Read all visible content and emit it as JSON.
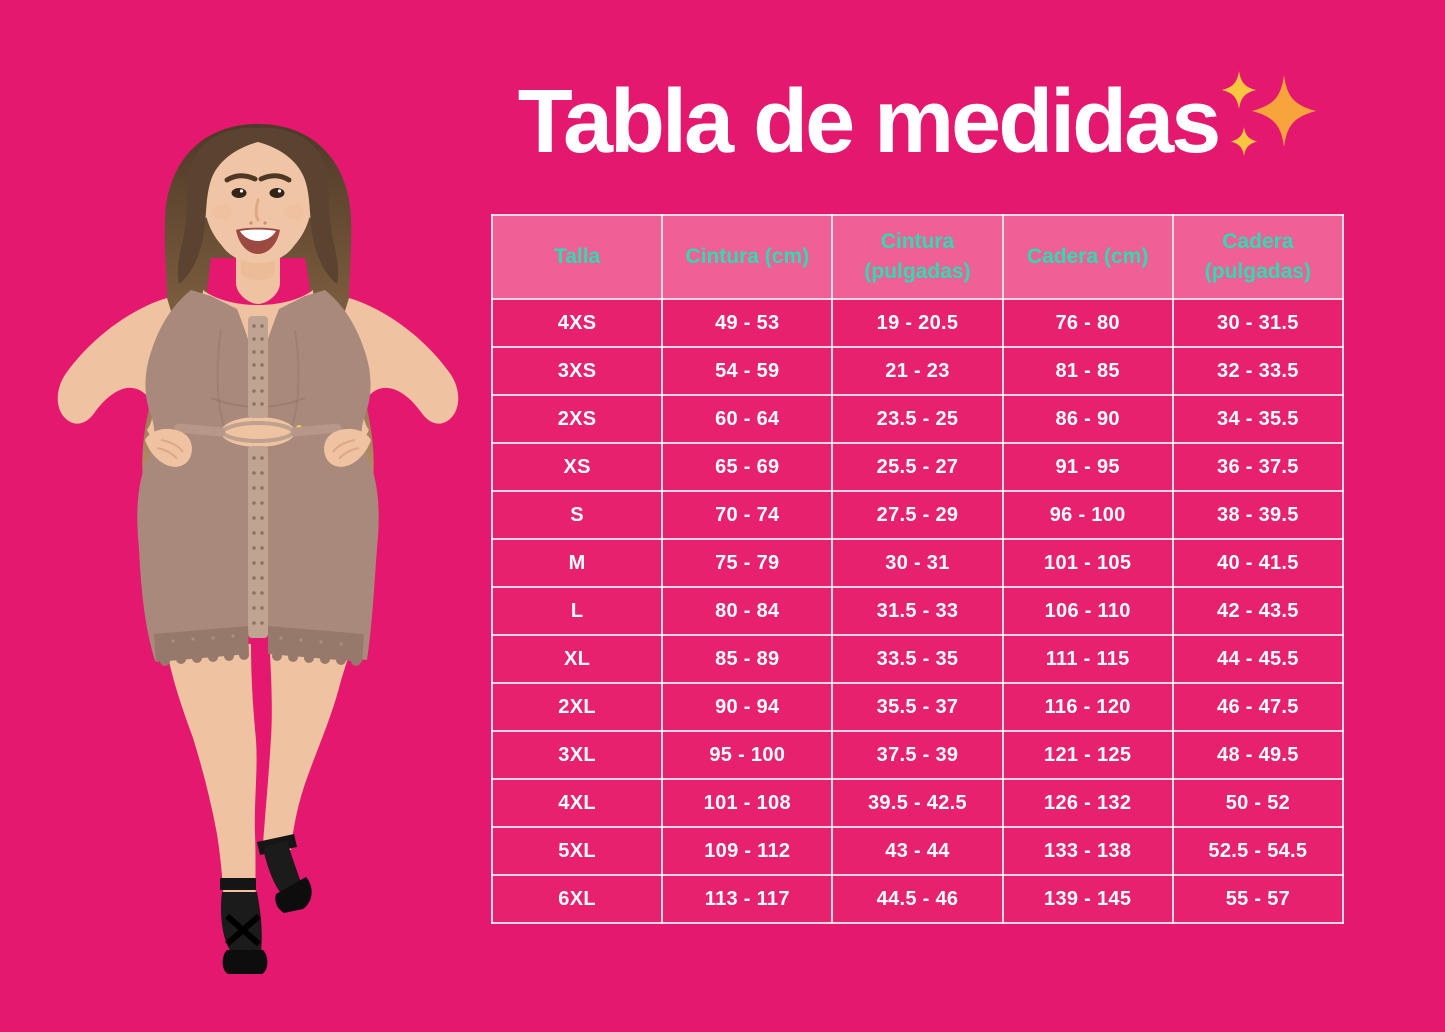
{
  "page": {
    "title": "Tabla de medidas",
    "background_color": "#E4186E",
    "title_color": "#FFFFFF",
    "icon": "sparkles-icon",
    "sparkle_colors": {
      "large_star": "#F6A43B",
      "small_stars": "#F8C63F"
    }
  },
  "model": {
    "description": "Plus-size woman with long wavy brown-blonde hair smiling, hands on hips, wearing taupe full-body shapewear with front hook-and-eye closures, lace thigh bands and black platform sandals"
  },
  "table": {
    "header_bg": "#EF6097",
    "header_text_color": "#2EDCB2",
    "cell_bg": "#E8216F",
    "cell_text_color": "#FFFFFF",
    "columns": [
      "Talla",
      "Cintura (cm)",
      "Cintura (pulgadas)",
      "Cadera (cm)",
      "Cadera (pulgadas)"
    ],
    "rows": [
      [
        "4XS",
        "49 - 53",
        "19 - 20.5",
        "76 - 80",
        "30 - 31.5"
      ],
      [
        "3XS",
        "54 - 59",
        "21 - 23",
        "81 - 85",
        "32 - 33.5"
      ],
      [
        "2XS",
        "60 - 64",
        "23.5 - 25",
        "86 - 90",
        "34 - 35.5"
      ],
      [
        "XS",
        "65 - 69",
        "25.5 - 27",
        "91 - 95",
        "36 - 37.5"
      ],
      [
        "S",
        "70 - 74",
        "27.5 - 29",
        "96 - 100",
        "38 - 39.5"
      ],
      [
        "M",
        "75 - 79",
        "30 - 31",
        "101 - 105",
        "40 - 41.5"
      ],
      [
        "L",
        "80 - 84",
        "31.5 - 33",
        "106 - 110",
        "42 - 43.5"
      ],
      [
        "XL",
        "85 - 89",
        "33.5 - 35",
        "111 - 115",
        "44 - 45.5"
      ],
      [
        "2XL",
        "90 - 94",
        "35.5 - 37",
        "116 - 120",
        "46 - 47.5"
      ],
      [
        "3XL",
        "95 - 100",
        "37.5 - 39",
        "121 - 125",
        "48 - 49.5"
      ],
      [
        "4XL",
        "101 - 108",
        "39.5 - 42.5",
        "126 - 132",
        "50 - 52"
      ],
      [
        "5XL",
        "109 - 112",
        "43 - 44",
        "133 - 138",
        "52.5 - 54.5"
      ],
      [
        "6XL",
        "113 - 117",
        "44.5 - 46",
        "139 - 145",
        "55 - 57"
      ]
    ]
  }
}
